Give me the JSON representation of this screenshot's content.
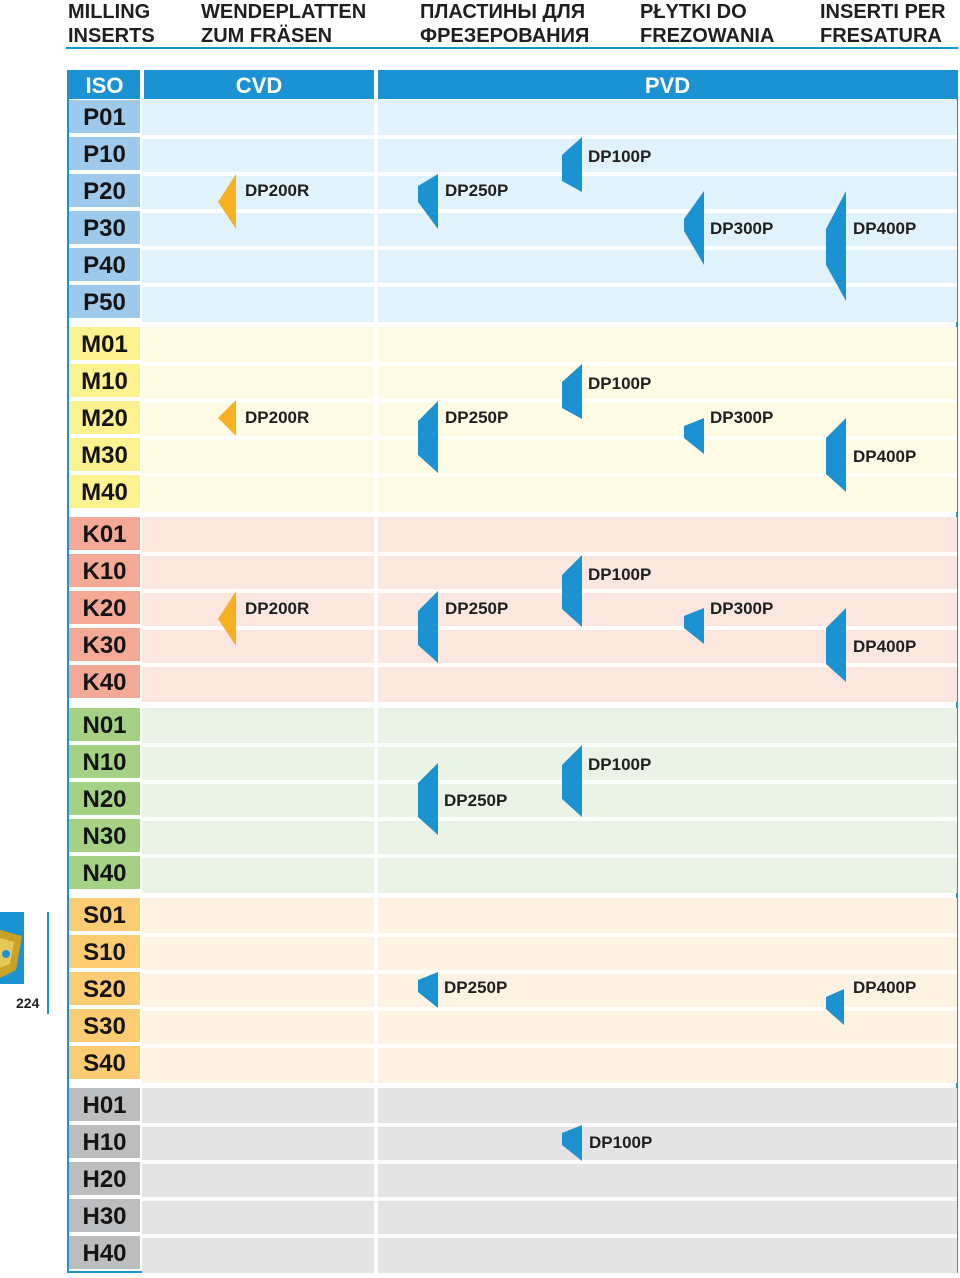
{
  "header": {
    "columns": [
      {
        "line1": "MILLING",
        "line2": "INSERTS"
      },
      {
        "line1": "WENDEPLATTEN",
        "line2": "ZUM FRÄSEN"
      },
      {
        "line1": "ПЛАСТИНЫ ДЛЯ",
        "line2": "ФРЕЗЕРОВАНИЯ"
      },
      {
        "line1": "PŁYTKI DO",
        "line2": "FREZOWANIA"
      },
      {
        "line1": "INSERTI PER",
        "line2": "FRESATURA"
      }
    ]
  },
  "table": {
    "iso_label": "ISO",
    "cvd_label": "CVD",
    "pvd_label": "PVD"
  },
  "groups": {
    "P": {
      "rows": [
        "P01",
        "P10",
        "P20",
        "P30",
        "P40",
        "P50"
      ],
      "color": "#e0f2fb",
      "iso_color": "#9ec9ea"
    },
    "M": {
      "rows": [
        "M01",
        "M10",
        "M20",
        "M30",
        "M40"
      ],
      "color": "#fdfbe3",
      "iso_color": "#fdf190"
    },
    "K": {
      "rows": [
        "K01",
        "K10",
        "K20",
        "K30",
        "K40"
      ],
      "color": "#fbe7df",
      "iso_color": "#f4a996"
    },
    "N": {
      "rows": [
        "N01",
        "N10",
        "N20",
        "N30",
        "N40"
      ],
      "color": "#ebf3e7",
      "iso_color": "#a4d184"
    },
    "S": {
      "rows": [
        "S01",
        "S10",
        "S20",
        "S30",
        "S40"
      ],
      "color": "#fef3e3",
      "iso_color": "#fccc72"
    },
    "H": {
      "rows": [
        "H01",
        "H10",
        "H20",
        "H30",
        "H40"
      ],
      "color": "#e4e4e4",
      "iso_color": "#bcbdbf"
    }
  },
  "labels": {
    "p_dp200r": "DP200R",
    "p_dp250p": "DP250P",
    "p_dp100p": "DP100P",
    "p_dp300p": "DP300P",
    "p_dp400p": "DP400P",
    "m_dp200r": "DP200R",
    "m_dp250p": "DP250P",
    "m_dp100p": "DP100P",
    "m_dp300p": "DP300P",
    "m_dp400p": "DP400P",
    "k_dp200r": "DP200R",
    "k_dp250p": "DP250P",
    "k_dp100p": "DP100P",
    "k_dp300p": "DP300P",
    "k_dp400p": "DP400P",
    "n_dp250p": "DP250P",
    "n_dp100p": "DP100P",
    "s_dp250p": "DP250P",
    "s_dp400p": "DP400P",
    "h_dp100p": "DP100P"
  },
  "colors": {
    "accent": "#1b93d3",
    "cvd_marker": "#f9b021",
    "pvd_marker": "#1b93d3"
  },
  "page_number": "224"
}
